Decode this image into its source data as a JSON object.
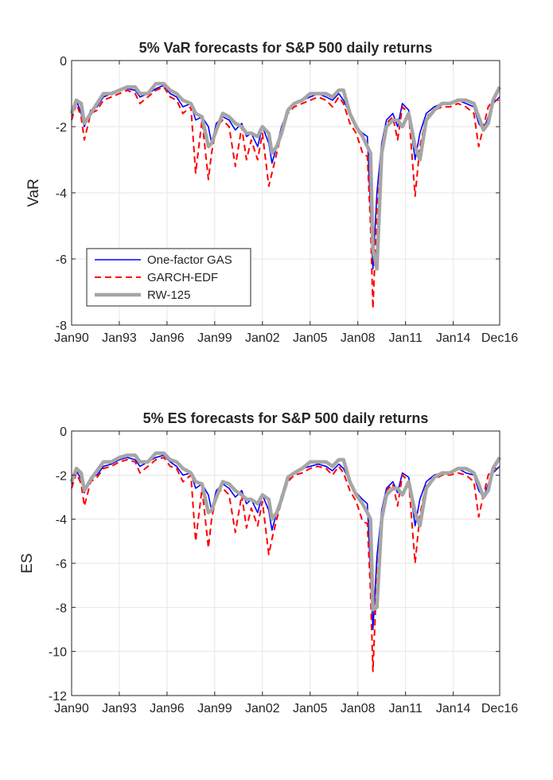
{
  "chart_data": [
    {
      "type": "line",
      "title": "5% VaR forecasts for S&P 500 daily returns",
      "xlabel": "",
      "ylabel": "VaR",
      "ylim": [
        -8,
        0
      ],
      "yticks": [
        0,
        -2,
        -4,
        -6,
        -8
      ],
      "ytick_labels": [
        "0",
        "-2",
        "-4",
        "-6",
        "-8"
      ],
      "xlim": [
        1990.0,
        2016.92
      ],
      "xtick_labels": [
        "Jan90",
        "Jan93",
        "Jan96",
        "Jan99",
        "Jan02",
        "Jan05",
        "Jan08",
        "Jan11",
        "Jan14",
        "Dec16"
      ],
      "xtick_values": [
        1990.0,
        1993.0,
        1996.0,
        1999.0,
        2002.0,
        2005.0,
        2008.0,
        2011.0,
        2014.0,
        2016.92
      ],
      "grid": true,
      "legend_position": "lower-left",
      "legend": [
        "One-factor GAS",
        "GARCH-EDF",
        "RW-125"
      ],
      "series": [
        {
          "name": "One-factor GAS",
          "color": "#0000ff",
          "style": "solid",
          "x": [
            1990.0,
            1990.3,
            1990.6,
            1990.8,
            1991.2,
            1991.6,
            1992.0,
            1992.5,
            1993.0,
            1993.5,
            1994.0,
            1994.3,
            1994.8,
            1995.3,
            1995.8,
            1996.2,
            1996.6,
            1997.0,
            1997.5,
            1997.8,
            1998.2,
            1998.6,
            1998.8,
            1999.1,
            1999.5,
            1999.9,
            2000.3,
            2000.7,
            2001.0,
            2001.3,
            2001.7,
            2002.0,
            2002.4,
            2002.6,
            2002.9,
            2003.2,
            2003.6,
            2004.0,
            2004.5,
            2005.0,
            2005.5,
            2006.0,
            2006.4,
            2006.8,
            2007.1,
            2007.5,
            2007.9,
            2008.3,
            2008.6,
            2008.8,
            2008.95,
            2009.2,
            2009.5,
            2009.8,
            2010.2,
            2010.5,
            2010.8,
            2011.2,
            2011.6,
            2011.9,
            2012.3,
            2012.8,
            2013.3,
            2013.8,
            2014.3,
            2014.8,
            2015.3,
            2015.6,
            2015.9,
            2016.2,
            2016.5,
            2016.92
          ],
          "values": [
            -1.7,
            -1.2,
            -1.6,
            -2.0,
            -1.5,
            -1.4,
            -1.1,
            -1.0,
            -0.9,
            -0.85,
            -0.9,
            -1.1,
            -1.0,
            -0.85,
            -0.75,
            -1.0,
            -1.1,
            -1.4,
            -1.3,
            -1.8,
            -1.7,
            -2.0,
            -2.5,
            -1.9,
            -1.7,
            -1.8,
            -2.1,
            -1.9,
            -2.3,
            -2.2,
            -2.6,
            -2.0,
            -2.5,
            -3.1,
            -2.6,
            -2.0,
            -1.5,
            -1.3,
            -1.2,
            -1.1,
            -1.0,
            -1.1,
            -1.2,
            -1.0,
            -1.2,
            -1.6,
            -2.0,
            -2.2,
            -2.3,
            -4.5,
            -6.3,
            -4.0,
            -2.5,
            -1.8,
            -1.6,
            -2.0,
            -1.3,
            -1.5,
            -3.0,
            -2.2,
            -1.6,
            -1.4,
            -1.3,
            -1.3,
            -1.2,
            -1.3,
            -1.4,
            -1.9,
            -2.1,
            -1.7,
            -1.3,
            -1.1
          ]
        },
        {
          "name": "GARCH-EDF",
          "color": "#ff0000",
          "style": "dashed",
          "x": [
            1990.0,
            1990.3,
            1990.6,
            1990.8,
            1991.2,
            1991.6,
            1992.0,
            1992.5,
            1993.0,
            1993.5,
            1994.0,
            1994.3,
            1994.8,
            1995.3,
            1995.8,
            1996.2,
            1996.6,
            1997.0,
            1997.5,
            1997.8,
            1998.2,
            1998.6,
            1998.8,
            1999.1,
            1999.5,
            1999.9,
            2000.3,
            2000.7,
            2001.0,
            2001.3,
            2001.7,
            2002.0,
            2002.4,
            2002.6,
            2002.9,
            2003.2,
            2003.6,
            2004.0,
            2004.5,
            2005.0,
            2005.5,
            2006.0,
            2006.4,
            2006.8,
            2007.1,
            2007.5,
            2007.9,
            2008.3,
            2008.6,
            2008.8,
            2008.95,
            2009.2,
            2009.5,
            2009.8,
            2010.2,
            2010.5,
            2010.8,
            2011.2,
            2011.6,
            2011.9,
            2012.3,
            2012.8,
            2013.3,
            2013.8,
            2014.3,
            2014.8,
            2015.3,
            2015.6,
            2015.9,
            2016.2,
            2016.5,
            2016.92
          ],
          "values": [
            -1.8,
            -1.3,
            -1.7,
            -2.4,
            -1.6,
            -1.5,
            -1.2,
            -1.1,
            -1.0,
            -0.9,
            -1.0,
            -1.3,
            -1.1,
            -0.9,
            -0.8,
            -1.1,
            -1.2,
            -1.6,
            -1.4,
            -3.4,
            -1.8,
            -3.6,
            -2.8,
            -2.0,
            -1.8,
            -2.0,
            -3.2,
            -2.0,
            -3.0,
            -2.4,
            -3.0,
            -2.2,
            -3.8,
            -3.4,
            -2.8,
            -2.2,
            -1.6,
            -1.4,
            -1.3,
            -1.2,
            -1.1,
            -1.2,
            -1.4,
            -1.1,
            -1.3,
            -1.9,
            -2.2,
            -2.8,
            -2.9,
            -5.0,
            -7.5,
            -4.5,
            -2.7,
            -1.9,
            -1.7,
            -2.4,
            -1.4,
            -1.6,
            -4.1,
            -2.6,
            -1.7,
            -1.5,
            -1.4,
            -1.4,
            -1.3,
            -1.4,
            -1.6,
            -2.6,
            -2.0,
            -1.4,
            -1.2,
            -1.2
          ]
        },
        {
          "name": "RW-125",
          "color": "#a6a6a6",
          "style": "solid-thick",
          "x": [
            1990.0,
            1990.3,
            1990.6,
            1990.8,
            1991.2,
            1991.6,
            1992.0,
            1992.5,
            1993.0,
            1993.5,
            1994.0,
            1994.3,
            1994.8,
            1995.3,
            1995.8,
            1996.2,
            1996.6,
            1997.0,
            1997.5,
            1997.8,
            1998.2,
            1998.6,
            1998.8,
            1999.1,
            1999.5,
            1999.9,
            2000.3,
            2000.7,
            2001.0,
            2001.3,
            2001.7,
            2002.0,
            2002.4,
            2002.6,
            2002.9,
            2003.2,
            2003.6,
            2004.0,
            2004.5,
            2005.0,
            2005.5,
            2006.0,
            2006.4,
            2006.8,
            2007.1,
            2007.5,
            2007.9,
            2008.3,
            2008.6,
            2008.8,
            2008.95,
            2009.2,
            2009.5,
            2009.8,
            2010.2,
            2010.5,
            2010.8,
            2011.2,
            2011.6,
            2011.9,
            2012.3,
            2012.8,
            2013.3,
            2013.8,
            2014.3,
            2014.8,
            2015.3,
            2015.6,
            2015.9,
            2016.2,
            2016.5,
            2016.92
          ],
          "values": [
            -1.6,
            -1.2,
            -1.3,
            -1.9,
            -1.6,
            -1.3,
            -1.0,
            -1.0,
            -0.9,
            -0.8,
            -0.8,
            -1.0,
            -1.0,
            -0.7,
            -0.7,
            -0.9,
            -1.0,
            -1.2,
            -1.3,
            -1.6,
            -1.7,
            -2.6,
            -2.5,
            -2.1,
            -1.6,
            -1.7,
            -1.9,
            -2.0,
            -2.2,
            -2.2,
            -2.3,
            -2.0,
            -2.2,
            -2.8,
            -2.6,
            -2.2,
            -1.5,
            -1.3,
            -1.2,
            -1.0,
            -1.0,
            -1.0,
            -1.1,
            -0.9,
            -0.9,
            -1.6,
            -2.0,
            -2.3,
            -2.6,
            -2.8,
            -5.7,
            -6.3,
            -2.8,
            -2.0,
            -1.8,
            -1.8,
            -2.0,
            -1.6,
            -2.6,
            -3.0,
            -1.8,
            -1.5,
            -1.3,
            -1.3,
            -1.2,
            -1.2,
            -1.3,
            -1.7,
            -2.1,
            -1.9,
            -1.2,
            -0.8
          ]
        }
      ]
    },
    {
      "type": "line",
      "title": "5% ES forecasts for S&P 500 daily returns",
      "xlabel": "",
      "ylabel": "ES",
      "ylim": [
        -12,
        0
      ],
      "yticks": [
        0,
        -2,
        -4,
        -6,
        -8,
        -10,
        -12
      ],
      "ytick_labels": [
        "0",
        "-2",
        "-4",
        "-6",
        "-8",
        "-10",
        "-12"
      ],
      "xlim": [
        1990.0,
        2016.92
      ],
      "xtick_labels": [
        "Jan90",
        "Jan93",
        "Jan96",
        "Jan99",
        "Jan02",
        "Jan05",
        "Jan08",
        "Jan11",
        "Jan14",
        "Dec16"
      ],
      "xtick_values": [
        1990.0,
        1993.0,
        1996.0,
        1999.0,
        2002.0,
        2005.0,
        2008.0,
        2011.0,
        2014.0,
        2016.92
      ],
      "grid": true,
      "legend_position": "none",
      "series": [
        {
          "name": "One-factor GAS",
          "color": "#0000ff",
          "style": "solid",
          "x": [
            1990.0,
            1990.3,
            1990.6,
            1990.8,
            1991.2,
            1991.6,
            1992.0,
            1992.5,
            1993.0,
            1993.5,
            1994.0,
            1994.3,
            1994.8,
            1995.3,
            1995.8,
            1996.2,
            1996.6,
            1997.0,
            1997.5,
            1997.8,
            1998.2,
            1998.6,
            1998.8,
            1999.1,
            1999.5,
            1999.9,
            2000.3,
            2000.7,
            2001.0,
            2001.3,
            2001.7,
            2002.0,
            2002.4,
            2002.6,
            2002.9,
            2003.2,
            2003.6,
            2004.0,
            2004.5,
            2005.0,
            2005.5,
            2006.0,
            2006.4,
            2006.8,
            2007.1,
            2007.5,
            2007.9,
            2008.3,
            2008.6,
            2008.8,
            2008.95,
            2009.2,
            2009.5,
            2009.8,
            2010.2,
            2010.5,
            2010.8,
            2011.2,
            2011.6,
            2011.9,
            2012.3,
            2012.8,
            2013.3,
            2013.8,
            2014.3,
            2014.8,
            2015.3,
            2015.6,
            2015.9,
            2016.2,
            2016.5,
            2016.92
          ],
          "values": [
            -2.4,
            -1.8,
            -2.2,
            -2.8,
            -2.1,
            -2.0,
            -1.6,
            -1.5,
            -1.3,
            -1.2,
            -1.3,
            -1.6,
            -1.4,
            -1.2,
            -1.1,
            -1.4,
            -1.6,
            -2.0,
            -1.9,
            -2.6,
            -2.4,
            -2.9,
            -3.6,
            -2.7,
            -2.4,
            -2.6,
            -3.0,
            -2.7,
            -3.3,
            -3.1,
            -3.7,
            -2.9,
            -3.6,
            -4.5,
            -3.7,
            -2.9,
            -2.2,
            -1.9,
            -1.7,
            -1.6,
            -1.5,
            -1.6,
            -1.8,
            -1.5,
            -1.7,
            -2.3,
            -2.8,
            -3.1,
            -3.3,
            -6.4,
            -9.0,
            -5.7,
            -3.6,
            -2.6,
            -2.3,
            -2.8,
            -1.9,
            -2.1,
            -4.3,
            -3.1,
            -2.3,
            -2.0,
            -1.9,
            -1.9,
            -1.7,
            -1.9,
            -2.0,
            -2.7,
            -3.0,
            -2.4,
            -1.9,
            -1.6
          ]
        },
        {
          "name": "GARCH-EDF",
          "color": "#ff0000",
          "style": "dashed",
          "x": [
            1990.0,
            1990.3,
            1990.6,
            1990.8,
            1991.2,
            1991.6,
            1992.0,
            1992.5,
            1993.0,
            1993.5,
            1994.0,
            1994.3,
            1994.8,
            1995.3,
            1995.8,
            1996.2,
            1996.6,
            1997.0,
            1997.5,
            1997.8,
            1998.2,
            1998.6,
            1998.8,
            1999.1,
            1999.5,
            1999.9,
            2000.3,
            2000.7,
            2001.0,
            2001.3,
            2001.7,
            2002.0,
            2002.4,
            2002.6,
            2002.9,
            2003.2,
            2003.6,
            2004.0,
            2004.5,
            2005.0,
            2005.5,
            2006.0,
            2006.4,
            2006.8,
            2007.1,
            2007.5,
            2007.9,
            2008.3,
            2008.6,
            2008.8,
            2008.95,
            2009.2,
            2009.5,
            2009.8,
            2010.2,
            2010.5,
            2010.8,
            2011.2,
            2011.6,
            2011.9,
            2012.3,
            2012.8,
            2013.3,
            2013.8,
            2014.3,
            2014.8,
            2015.3,
            2015.6,
            2015.9,
            2016.2,
            2016.5,
            2016.92
          ],
          "values": [
            -2.6,
            -1.9,
            -2.4,
            -3.4,
            -2.3,
            -2.1,
            -1.7,
            -1.6,
            -1.4,
            -1.3,
            -1.4,
            -1.9,
            -1.6,
            -1.3,
            -1.2,
            -1.6,
            -1.7,
            -2.3,
            -2.0,
            -5.0,
            -2.6,
            -5.3,
            -4.0,
            -2.9,
            -2.6,
            -2.9,
            -4.6,
            -2.9,
            -4.4,
            -3.5,
            -4.3,
            -3.2,
            -5.6,
            -4.9,
            -4.0,
            -3.2,
            -2.3,
            -2.0,
            -1.9,
            -1.7,
            -1.6,
            -1.7,
            -2.0,
            -1.6,
            -1.9,
            -2.7,
            -3.2,
            -4.1,
            -4.2,
            -7.3,
            -10.9,
            -6.5,
            -3.9,
            -2.7,
            -2.4,
            -3.4,
            -2.0,
            -2.3,
            -6.0,
            -3.8,
            -2.4,
            -2.2,
            -2.0,
            -2.0,
            -1.9,
            -2.0,
            -2.3,
            -3.9,
            -2.9,
            -2.0,
            -1.7,
            -1.7
          ]
        },
        {
          "name": "RW-125",
          "color": "#a6a6a6",
          "style": "solid-thick",
          "x": [
            1990.0,
            1990.3,
            1990.6,
            1990.8,
            1991.2,
            1991.6,
            1992.0,
            1992.5,
            1993.0,
            1993.5,
            1994.0,
            1994.3,
            1994.8,
            1995.3,
            1995.8,
            1996.2,
            1996.6,
            1997.0,
            1997.5,
            1997.8,
            1998.2,
            1998.6,
            1998.8,
            1999.1,
            1999.5,
            1999.9,
            2000.3,
            2000.7,
            2001.0,
            2001.3,
            2001.7,
            2002.0,
            2002.4,
            2002.6,
            2002.9,
            2003.2,
            2003.6,
            2004.0,
            2004.5,
            2005.0,
            2005.5,
            2006.0,
            2006.4,
            2006.8,
            2007.1,
            2007.5,
            2007.9,
            2008.3,
            2008.6,
            2008.8,
            2008.95,
            2009.2,
            2009.5,
            2009.8,
            2010.2,
            2010.5,
            2010.8,
            2011.2,
            2011.6,
            2011.9,
            2012.3,
            2012.8,
            2013.3,
            2013.8,
            2014.3,
            2014.8,
            2015.3,
            2015.6,
            2015.9,
            2016.2,
            2016.5,
            2016.92
          ],
          "values": [
            -2.3,
            -1.7,
            -1.9,
            -2.7,
            -2.2,
            -1.8,
            -1.4,
            -1.4,
            -1.2,
            -1.1,
            -1.1,
            -1.4,
            -1.4,
            -1.0,
            -1.0,
            -1.3,
            -1.4,
            -1.7,
            -1.9,
            -2.3,
            -2.4,
            -3.7,
            -3.6,
            -3.0,
            -2.3,
            -2.4,
            -2.7,
            -2.9,
            -3.1,
            -3.1,
            -3.3,
            -2.9,
            -3.1,
            -4.0,
            -3.7,
            -3.1,
            -2.1,
            -1.9,
            -1.7,
            -1.4,
            -1.4,
            -1.4,
            -1.6,
            -1.3,
            -1.3,
            -2.3,
            -2.9,
            -3.3,
            -3.7,
            -4.0,
            -8.1,
            -8.0,
            -4.0,
            -2.9,
            -2.6,
            -2.6,
            -2.9,
            -2.3,
            -3.7,
            -4.3,
            -2.6,
            -2.1,
            -1.9,
            -1.9,
            -1.7,
            -1.7,
            -1.9,
            -2.4,
            -3.0,
            -2.7,
            -1.7,
            -1.2
          ]
        }
      ]
    }
  ]
}
